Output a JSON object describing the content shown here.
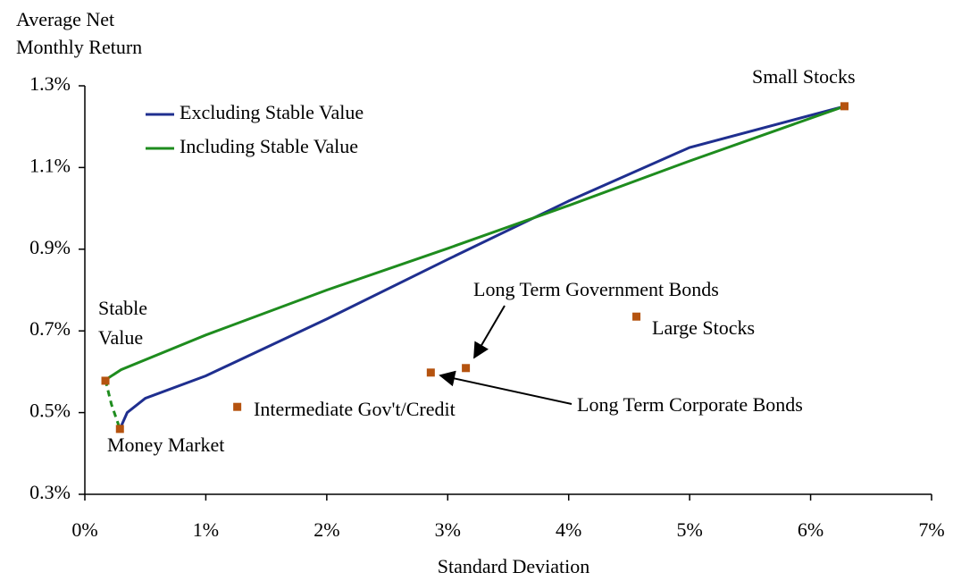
{
  "chart_data": {
    "type": "scatter",
    "x_label": "Standard Deviation",
    "y_label": "Average Net Monthly Return",
    "xlim": [
      0,
      7
    ],
    "ylim": [
      0.3,
      1.3
    ],
    "xticks": [
      {
        "value": 0,
        "label": "0%"
      },
      {
        "value": 1,
        "label": "1%"
      },
      {
        "value": 2,
        "label": "2%"
      },
      {
        "value": 3,
        "label": "3%"
      },
      {
        "value": 4,
        "label": "4%"
      },
      {
        "value": 5,
        "label": "5%"
      },
      {
        "value": 6,
        "label": "6%"
      },
      {
        "value": 7,
        "label": "7%"
      }
    ],
    "yticks": [
      {
        "value": 0.3,
        "label": "0.3%"
      },
      {
        "value": 0.5,
        "label": "0.5%"
      },
      {
        "value": 0.7,
        "label": "0.7%"
      },
      {
        "value": 0.9,
        "label": "0.9%"
      },
      {
        "value": 1.1,
        "label": "1.1%"
      },
      {
        "value": 1.3,
        "label": "1.3%"
      }
    ],
    "series": [
      {
        "name": "Excluding Stable Value",
        "color": "#1f2f8f",
        "style": "solid",
        "x": [
          0.29,
          0.35,
          0.5,
          1,
          2,
          3,
          4,
          5,
          6.28
        ],
        "values": [
          0.46,
          0.5,
          0.535,
          0.59,
          0.729,
          0.875,
          1.018,
          1.149,
          1.25
        ]
      },
      {
        "name": "Including Stable Value",
        "color": "#1e8c1e",
        "style": "solid",
        "x": [
          0.17,
          0.3,
          1,
          2,
          3,
          4,
          5,
          6.28
        ],
        "values": [
          0.58,
          0.605,
          0.69,
          0.8,
          0.902,
          1.007,
          1.116,
          1.25
        ]
      },
      {
        "color": "#1e8c1e",
        "style": "dashed",
        "x": [
          0.17,
          0.22,
          0.29
        ],
        "values": [
          0.58,
          0.52,
          0.46
        ]
      }
    ],
    "points_color": "#b5530f",
    "points": [
      {
        "label": "Small Stocks",
        "x": 6.28,
        "y": 1.25
      },
      {
        "label": "Large Stocks",
        "x": 4.56,
        "y": 0.735
      },
      {
        "label": "Long Term Government Bonds",
        "x": 3.15,
        "y": 0.609,
        "arrow": true
      },
      {
        "label": "Long Term Corporate Bonds",
        "x": 2.86,
        "y": 0.598,
        "arrow": true
      },
      {
        "label": "Intermediate Gov't/Credit",
        "x": 1.26,
        "y": 0.514
      },
      {
        "label": "Money Market",
        "x": 0.29,
        "y": 0.46
      },
      {
        "label": "Stable Value",
        "x": 0.17,
        "y": 0.578
      }
    ]
  }
}
